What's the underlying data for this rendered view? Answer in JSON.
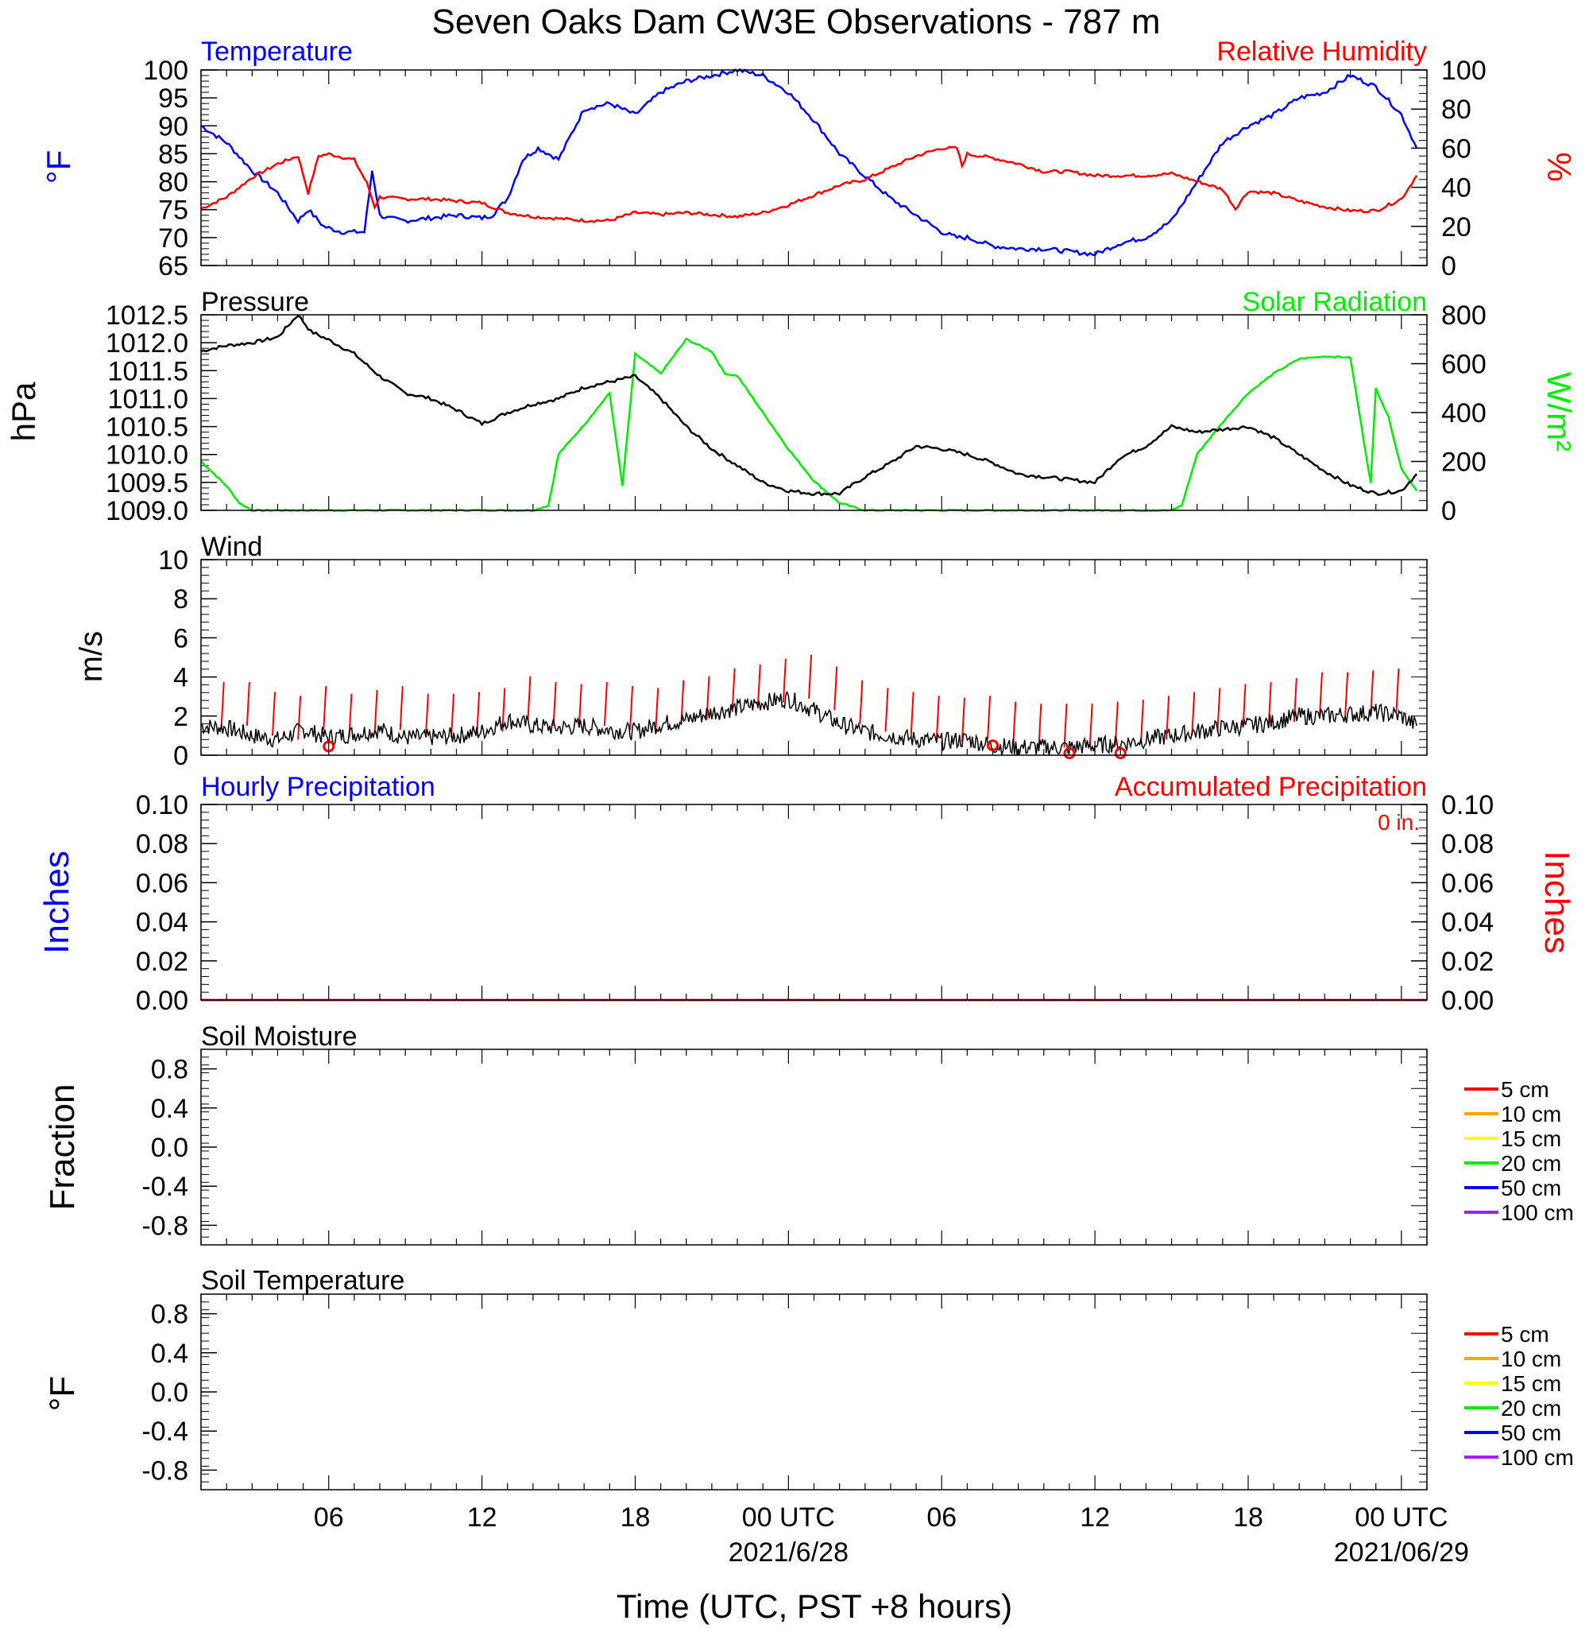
{
  "figure_title": "Seven Oaks Dam CW3E Observations - 787 m",
  "time_axis": {
    "start": "2021-06-27T01:00Z",
    "end": "2021-06-29T01:00Z",
    "tick_labels": [
      "06",
      "12",
      "18",
      "00 UTC",
      "06",
      "12",
      "18",
      "00 UTC"
    ],
    "tick_hours": [
      6,
      12,
      18,
      24,
      30,
      36,
      42,
      48
    ],
    "date_labels": [
      {
        "text": "2021/6/28",
        "hour": 24
      },
      {
        "text": "2021/06/29",
        "hour": 48
      }
    ],
    "xlabel": "Time (UTC, PST +8 hours)"
  },
  "colors": {
    "temperature": "#0000ff",
    "humidity": "#ff0000",
    "pressure": "#000000",
    "solar": "#00ee00",
    "wind_speed": "#000000",
    "wind_barb": "#ff0000",
    "hourly_precip": "#0000ff",
    "accum_precip": "#ff0000"
  },
  "panels": {
    "temp_rh": {
      "left_title": "Temperature",
      "right_title": "Relative Humidity",
      "left_unit": "°F",
      "right_unit": "%",
      "left_ticks": [
        "100",
        "95",
        "90",
        "85",
        "80",
        "75",
        "70",
        "65"
      ],
      "right_ticks": [
        "100",
        "80",
        "60",
        "40",
        "20",
        "0"
      ]
    },
    "pressure_solar": {
      "left_title": "Pressure",
      "right_title": "Solar Radiation",
      "left_unit": "hPa",
      "right_unit": "W/m²",
      "left_ticks": [
        "1012.5",
        "1012.0",
        "1011.5",
        "1011.0",
        "1010.5",
        "1010.0",
        "1009.5",
        "1009.0"
      ],
      "right_ticks": [
        "800",
        "600",
        "400",
        "200",
        "0"
      ]
    },
    "wind": {
      "left_title": "Wind",
      "left_unit": "m/s",
      "left_ticks": [
        "10",
        "8",
        "6",
        "4",
        "2",
        "0"
      ]
    },
    "precip": {
      "left_title": "Hourly Precipitation",
      "right_title": "Accumulated Precipitation",
      "annotation": "0 in.",
      "left_unit": "Inches",
      "right_unit": "Inches",
      "left_ticks": [
        "0.10",
        "0.08",
        "0.06",
        "0.04",
        "0.02",
        "0.00"
      ],
      "right_ticks": [
        "0.10",
        "0.08",
        "0.06",
        "0.04",
        "0.02",
        "0.00"
      ]
    },
    "soil_moisture": {
      "left_title": "Soil Moisture",
      "left_unit": "Fraction",
      "left_ticks": [
        "0.8",
        "0.4",
        "0.0",
        "-0.4",
        "-0.8"
      ],
      "legend": [
        {
          "label": "5 cm",
          "color": "#ff0000"
        },
        {
          "label": "10 cm",
          "color": "#ffa500"
        },
        {
          "label": "15 cm",
          "color": "#ffff00"
        },
        {
          "label": "20 cm",
          "color": "#00ee00"
        },
        {
          "label": "50 cm",
          "color": "#0000ff"
        },
        {
          "label": "100 cm",
          "color": "#a020f0"
        }
      ]
    },
    "soil_temp": {
      "left_title": "Soil Temperature",
      "left_unit": "°F",
      "left_ticks": [
        "0.8",
        "0.4",
        "0.0",
        "-0.4",
        "-0.8"
      ],
      "legend": [
        {
          "label": "5 cm",
          "color": "#ff0000"
        },
        {
          "label": "10 cm",
          "color": "#ffa500"
        },
        {
          "label": "15 cm",
          "color": "#ffff00"
        },
        {
          "label": "20 cm",
          "color": "#00ee00"
        },
        {
          "label": "50 cm",
          "color": "#0000ff"
        },
        {
          "label": "100 cm",
          "color": "#a020f0"
        }
      ]
    }
  },
  "chart_data": [
    {
      "type": "line",
      "panel": "temp_rh",
      "x_units": "hours since 2021-06-27T00:00Z",
      "xlim": [
        1,
        49
      ],
      "ylim_left": [
        65,
        100
      ],
      "ylim_right": [
        0,
        100
      ],
      "grid": false,
      "series": [
        {
          "name": "Temperature",
          "axis": "left",
          "x": [
            1,
            2,
            3,
            4,
            4.8,
            5.2,
            5.8,
            6.5,
            7.4,
            7.7,
            8,
            8.3,
            9,
            10,
            11,
            12,
            12.4,
            13,
            13.6,
            14.2,
            15,
            16,
            17,
            18,
            19,
            20,
            21,
            22,
            23,
            24,
            25,
            26,
            27,
            28,
            29,
            30,
            30.6,
            31,
            32,
            33,
            34,
            35,
            36,
            37,
            38,
            39,
            40,
            41,
            42,
            43,
            44,
            45,
            46,
            47,
            48,
            48.6
          ],
          "values": [
            90,
            87,
            82,
            78,
            73,
            75,
            72,
            71,
            71,
            82,
            74,
            73.5,
            73,
            73.5,
            74,
            73.5,
            74,
            77,
            84,
            86,
            84,
            93,
            94,
            92,
            96,
            98,
            99,
            100,
            99,
            96,
            91,
            85,
            81,
            77,
            74,
            71,
            70,
            70,
            68.5,
            68,
            68,
            67.5,
            67,
            69,
            70,
            73,
            80,
            87,
            90,
            92,
            95,
            96,
            99,
            97,
            92,
            86
          ]
        },
        {
          "name": "Relative Humidity",
          "axis": "right",
          "x": [
            1,
            2,
            3,
            4,
            4.8,
            5.2,
            5.6,
            6,
            7,
            7.5,
            7.8,
            8,
            9,
            10,
            11,
            12,
            13,
            14,
            15,
            16,
            17,
            18,
            19,
            20,
            21,
            22,
            23,
            24,
            25,
            26,
            27,
            28,
            29,
            30,
            30.6,
            30.8,
            31,
            32,
            33,
            34,
            35,
            36,
            37,
            38,
            39,
            40,
            41,
            41.5,
            42,
            43,
            44,
            45,
            46,
            47,
            48,
            48.6
          ],
          "values": [
            29,
            35,
            45,
            52,
            56,
            37,
            56,
            57,
            54,
            42,
            30,
            35,
            34,
            34,
            33,
            32,
            27,
            25,
            24,
            23,
            23,
            27,
            26,
            27,
            26,
            25,
            27,
            31,
            36,
            41,
            44,
            50,
            56,
            60,
            60,
            51,
            57,
            55,
            52,
            48,
            48,
            46,
            46,
            46,
            47,
            43,
            39,
            29,
            38,
            37,
            33,
            30,
            28,
            28,
            34,
            46
          ]
        }
      ]
    },
    {
      "type": "line",
      "panel": "pressure_solar",
      "x_units": "hours since 2021-06-27T00:00Z",
      "xlim": [
        1,
        49
      ],
      "ylim_left": [
        1009.0,
        1012.5
      ],
      "ylim_right": [
        0,
        800
      ],
      "series": [
        {
          "name": "Pressure",
          "axis": "left",
          "x": [
            1,
            2,
            3,
            4,
            4.8,
            5.3,
            6,
            7,
            8,
            9,
            10,
            11,
            12,
            13,
            14,
            15,
            16,
            17,
            18,
            19,
            20,
            21,
            22,
            23,
            24,
            25,
            26,
            27,
            28,
            29,
            30,
            31,
            32,
            33,
            34,
            35,
            36,
            37,
            38,
            39,
            40,
            41,
            42,
            43,
            44,
            45,
            46,
            47,
            48,
            48.6
          ],
          "values": [
            1011.85,
            1011.95,
            1012.0,
            1012.1,
            1012.5,
            1012.2,
            1012.05,
            1011.8,
            1011.4,
            1011.1,
            1011.0,
            1010.8,
            1010.55,
            1010.75,
            1010.9,
            1011.0,
            1011.2,
            1011.3,
            1011.4,
            1011.0,
            1010.5,
            1010.1,
            1009.8,
            1009.5,
            1009.35,
            1009.3,
            1009.3,
            1009.6,
            1009.85,
            1010.15,
            1010.1,
            1010.0,
            1009.85,
            1009.65,
            1009.6,
            1009.55,
            1009.5,
            1009.95,
            1010.15,
            1010.5,
            1010.4,
            1010.45,
            1010.5,
            1010.3,
            1010.0,
            1009.7,
            1009.45,
            1009.3,
            1009.35,
            1009.65
          ]
        },
        {
          "name": "Solar Radiation",
          "axis": "right",
          "x": [
            1,
            2,
            2.5,
            3,
            14,
            14.6,
            15,
            16,
            17,
            17.5,
            18,
            19,
            20,
            21,
            21.5,
            22,
            23,
            24,
            25,
            26,
            27,
            28,
            39,
            39.4,
            40,
            41,
            42,
            43,
            44,
            45,
            46,
            46.8,
            47,
            47.5,
            48,
            48.6
          ],
          "values": [
            200,
            100,
            30,
            0,
            0,
            20,
            230,
            350,
            480,
            100,
            640,
            560,
            700,
            650,
            560,
            550,
            400,
            250,
            120,
            30,
            0,
            0,
            0,
            20,
            230,
            360,
            480,
            560,
            620,
            630,
            625,
            110,
            500,
            380,
            170,
            80
          ]
        }
      ]
    },
    {
      "type": "line",
      "panel": "wind",
      "x_units": "hours since 2021-06-27T00:00Z",
      "xlim": [
        1,
        49
      ],
      "ylim": [
        0,
        10
      ],
      "series": [
        {
          "name": "Wind",
          "axis": "left",
          "x": [
            1,
            2,
            3,
            4,
            5,
            6,
            7,
            8,
            9,
            10,
            11,
            12,
            13,
            14,
            15,
            16,
            17,
            18,
            19,
            20,
            21,
            22,
            23,
            24,
            25,
            26,
            27,
            28,
            29,
            30,
            31,
            32,
            33,
            34,
            35,
            36,
            37,
            38,
            39,
            40,
            41,
            42,
            43,
            44,
            45,
            46,
            47,
            48,
            48.6
          ],
          "values": [
            1.5,
            1.4,
            1.0,
            0.8,
            1.3,
            0.9,
            1.1,
            1.3,
            0.9,
            0.9,
            1.0,
            1.2,
            1.8,
            1.5,
            1.4,
            1.5,
            1.3,
            1.2,
            1.6,
            1.8,
            2.2,
            2.4,
            2.7,
            2.9,
            2.3,
            1.6,
            1.2,
            1.0,
            0.8,
            0.7,
            0.8,
            0.5,
            0.4,
            0.4,
            0.4,
            0.5,
            0.6,
            0.8,
            1.0,
            1.2,
            1.4,
            1.5,
            1.7,
            2.0,
            2.0,
            2.1,
            2.2,
            2.0,
            1.5
          ]
        },
        {
          "name": "Wind barbs",
          "type": "barb",
          "axis": "left",
          "x": [
            1.8,
            2.8,
            3.8,
            4.8,
            5.8,
            6.8,
            7.8,
            8.8,
            9.8,
            10.8,
            11.8,
            12.8,
            13.8,
            14.8,
            15.8,
            16.8,
            17.8,
            18.8,
            19.8,
            20.8,
            21.8,
            22.8,
            23.8,
            24.8,
            25.8,
            26.8,
            27.8,
            28.8,
            29.8,
            30.8,
            31.8,
            32.8,
            33.8,
            34.8,
            35.8,
            36.8,
            37.8,
            38.8,
            39.8,
            40.8,
            41.8,
            42.8,
            43.8,
            44.8,
            45.8,
            46.8,
            47.8
          ],
          "values": [
            1.5,
            1.5,
            1.0,
            0.8,
            1.3,
            0.9,
            1.1,
            1.3,
            0.9,
            0.9,
            1.0,
            1.2,
            1.8,
            1.5,
            1.4,
            1.5,
            1.3,
            1.2,
            1.6,
            1.8,
            2.2,
            2.4,
            2.7,
            2.9,
            2.3,
            1.6,
            1.2,
            1.0,
            0.8,
            0.7,
            0.8,
            0.5,
            0.4,
            0.4,
            0.4,
            0.5,
            0.6,
            0.8,
            1.0,
            1.2,
            1.4,
            1.5,
            1.7,
            2.0,
            2.0,
            2.1,
            2.2
          ]
        },
        {
          "name": "Calm",
          "type": "circle",
          "axis": "left",
          "x": [
            6,
            32,
            35,
            37
          ],
          "values": [
            0.45,
            0.5,
            0.1,
            0.1
          ]
        }
      ]
    },
    {
      "type": "bar",
      "panel": "precip",
      "x_units": "hours since 2021-06-27T00:00Z",
      "xlim": [
        1,
        49
      ],
      "ylim": [
        0,
        0.1
      ],
      "series": [
        {
          "name": "Hourly Precipitation",
          "axis": "left",
          "x": [
            1,
            49
          ],
          "values": [
            0,
            0
          ]
        },
        {
          "name": "Accumulated Precipitation",
          "axis": "right",
          "x": [
            1,
            49
          ],
          "values": [
            0,
            0
          ]
        }
      ]
    },
    {
      "type": "line",
      "panel": "soil_moisture",
      "ylim": [
        -1,
        1
      ],
      "series": []
    },
    {
      "type": "line",
      "panel": "soil_temp",
      "ylim": [
        -1,
        1
      ],
      "series": []
    }
  ]
}
